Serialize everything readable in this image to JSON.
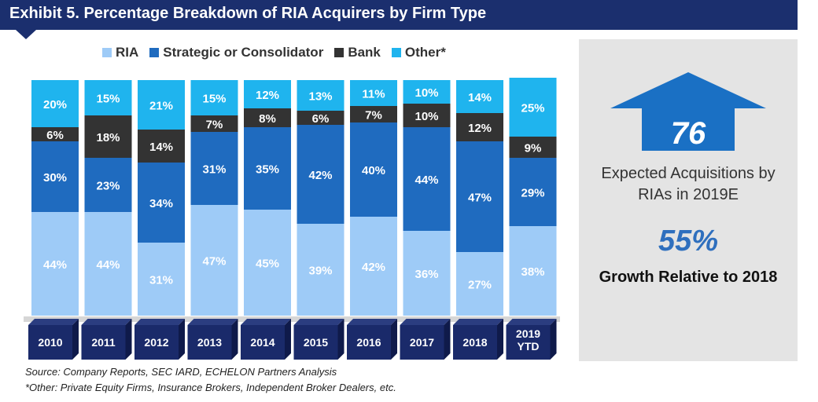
{
  "title": "Exhibit 5. Percentage Breakdown of RIA Acquirers by Firm Type",
  "colors": {
    "title_bar": "#1b2f6e",
    "ria": "#9ecbf7",
    "strategic": "#1f6bbf",
    "bank": "#333333",
    "other": "#1fb4ee",
    "year_box": "#1a2a6a",
    "panel_bg": "#e4e4e4",
    "arrow": "#1a70c4",
    "growth": "#2e6fbe"
  },
  "chart_data": {
    "type": "bar",
    "stacked": true,
    "title": "Exhibit 5. Percentage Breakdown of RIA Acquirers by Firm Type",
    "categories": [
      "2010",
      "2011",
      "2012",
      "2013",
      "2014",
      "2015",
      "2016",
      "2017",
      "2018",
      "2019\nYTD"
    ],
    "series": [
      {
        "name": "RIA",
        "values": [
          44,
          44,
          31,
          47,
          45,
          39,
          42,
          36,
          27,
          38
        ]
      },
      {
        "name": "Strategic or Consolidator",
        "values": [
          30,
          23,
          34,
          31,
          35,
          42,
          40,
          44,
          47,
          29
        ]
      },
      {
        "name": "Bank",
        "values": [
          6,
          18,
          14,
          7,
          8,
          6,
          7,
          10,
          12,
          9
        ]
      },
      {
        "name": "Other*",
        "values": [
          20,
          15,
          21,
          15,
          12,
          13,
          11,
          10,
          14,
          25
        ]
      }
    ],
    "ylim": [
      0,
      100
    ],
    "legend": "top",
    "grid": false
  },
  "sources": {
    "line1": "Source: Company Reports, SEC IARD, ECHELON Partners Analysis",
    "line2": "*Other: Private Equity Firms, Insurance Brokers, Independent Broker Dealers, etc."
  },
  "panel": {
    "expected_value": "76",
    "expected_label": "Expected Acquisitions by RIAs in 2019E",
    "growth_value": "55%",
    "growth_label": "Growth Relative to 2018"
  }
}
